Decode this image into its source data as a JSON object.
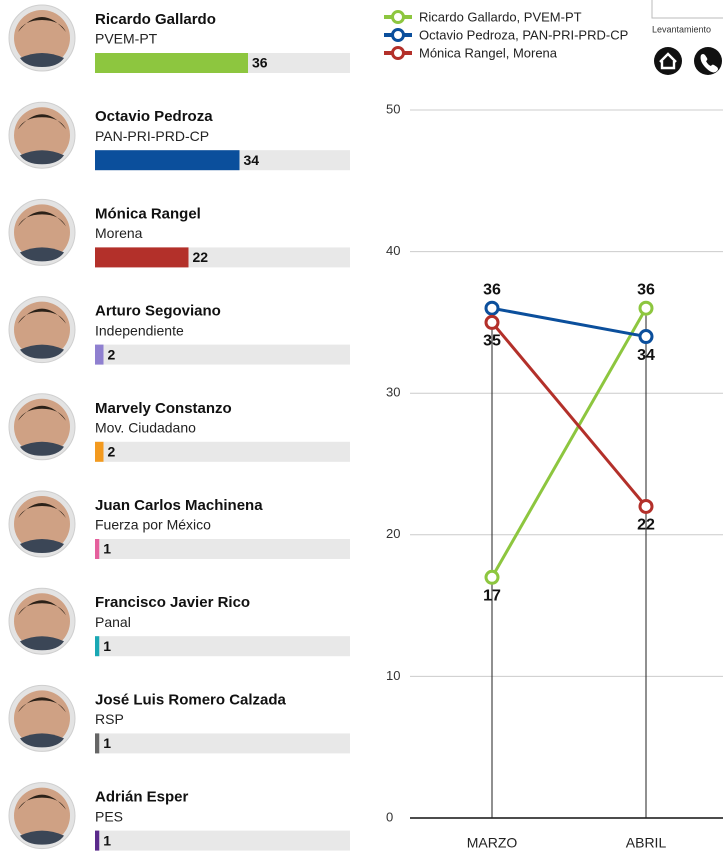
{
  "note": "Levantamiento",
  "chart_data": [
    {
      "type": "bar",
      "categories": [
        "Ricardo Gallardo",
        "Octavio Pedroza",
        "Mónica Rangel",
        "Arturo Segoviano",
        "Marvely Constanzo",
        "Juan Carlos Machinena",
        "Francisco Javier Rico",
        "José Luis Romero Calzada",
        "Adrián Esper"
      ],
      "parties": [
        "PVEM-PT",
        "PAN-PRI-PRD-CP",
        "Morena",
        "Independiente",
        "Mov. Ciudadano",
        "Fuerza por México",
        "Panal",
        "RSP",
        "PES"
      ],
      "values": [
        36,
        34,
        22,
        2,
        2,
        1,
        1,
        1,
        1
      ],
      "colors": [
        "#8dc63f",
        "#0b4f9c",
        "#b3302a",
        "#8f80d0",
        "#f39a1f",
        "#e5609d",
        "#19a8b4",
        "#666666",
        "#5b2a8c"
      ],
      "xlim": [
        0,
        60
      ]
    },
    {
      "type": "line",
      "categories": [
        "MARZO",
        "ABRIL"
      ],
      "series": [
        {
          "name": "Ricardo Gallardo, PVEM-PT",
          "color": "#8dc63f",
          "values": [
            17,
            36
          ]
        },
        {
          "name": "Octavio Pedroza, PAN-PRI-PRD-CP",
          "color": "#0b4f9c",
          "values": [
            36,
            34
          ]
        },
        {
          "name": "Mónica Rangel, Morena",
          "color": "#b3302a",
          "values": [
            35,
            22
          ]
        }
      ],
      "ylim": [
        0,
        50
      ],
      "yticks": [
        0,
        10,
        20,
        30,
        40,
        50
      ],
      "grid": true,
      "legend": "top"
    }
  ]
}
